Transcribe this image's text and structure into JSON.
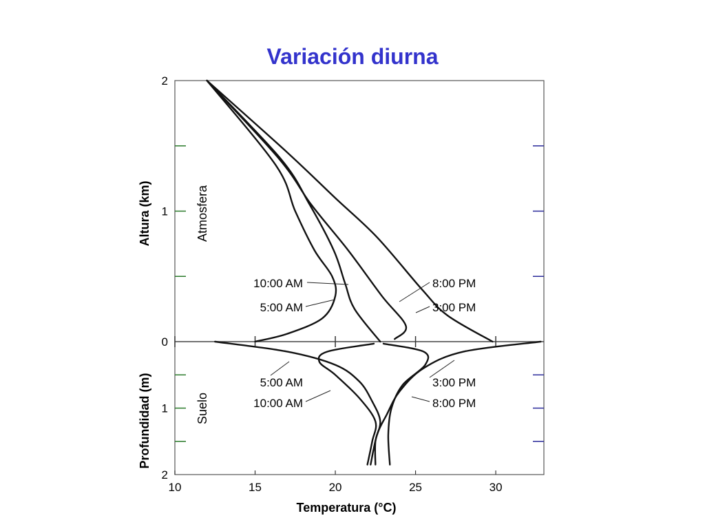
{
  "slide_title": "Variación diurna",
  "chart_data": {
    "type": "line",
    "title": "Variación diurna",
    "xlabel": "Temperatura (°C)",
    "xlim": [
      10,
      33
    ],
    "x_ticks": [
      "10",
      "15",
      "20",
      "25",
      "30"
    ],
    "panels": [
      {
        "name": "atmosphere",
        "region_label": "Atmosfera",
        "ylabel": "Altura (km)",
        "y_unit": "km",
        "ylim": [
          0,
          2
        ],
        "y_ticks": [
          "0",
          "1",
          "2"
        ],
        "series": [
          {
            "name": "5:00 AM",
            "points": [
              [
                15,
                0
              ],
              [
                17,
                0.06
              ],
              [
                19.2,
                0.18
              ],
              [
                20,
                0.35
              ],
              [
                19.8,
                0.5
              ],
              [
                18.7,
                0.7
              ],
              [
                17.5,
                1.0
              ],
              [
                16.3,
                1.35
              ],
              [
                12,
                2.0
              ]
            ]
          },
          {
            "name": "10:00 AM",
            "points": [
              [
                22.8,
                0
              ],
              [
                21.2,
                0.25
              ],
              [
                20.6,
                0.45
              ],
              [
                19.9,
                0.7
              ],
              [
                18.4,
                1.05
              ],
              [
                16.6,
                1.4
              ],
              [
                12,
                2.0
              ]
            ]
          },
          {
            "name": "3:00 PM",
            "points": [
              [
                29.8,
                0
              ],
              [
                27,
                0.2
              ],
              [
                25.4,
                0.4
              ],
              [
                22.6,
                0.8
              ],
              [
                20,
                1.1
              ],
              [
                17,
                1.45
              ],
              [
                12,
                2.0
              ]
            ]
          },
          {
            "name": "8:00 PM",
            "points": [
              [
                23.7,
                0.02
              ],
              [
                24.4,
                0.12
              ],
              [
                22.9,
                0.35
              ],
              [
                20.8,
                0.7
              ],
              [
                18.5,
                1.05
              ],
              [
                16.5,
                1.4
              ],
              [
                12,
                2.0
              ]
            ]
          }
        ]
      },
      {
        "name": "soil",
        "region_label": "Suelo",
        "ylabel": "Profundidad (m)",
        "y_unit": "m",
        "ylim": [
          0,
          2
        ],
        "y_ticks": [
          "0",
          "1",
          "2"
        ],
        "series": [
          {
            "name": "5:00 AM",
            "points": [
              [
                12.5,
                0
              ],
              [
                17,
                0.15
              ],
              [
                20,
                0.35
              ],
              [
                21.5,
                0.6
              ],
              [
                22.3,
                0.9
              ],
              [
                22.8,
                1.2
              ],
              [
                22.5,
                1.5
              ],
              [
                22.5,
                1.85
              ]
            ]
          },
          {
            "name": "10:00 AM",
            "points": [
              [
                22.4,
                0.03
              ],
              [
                19.5,
                0.15
              ],
              [
                19,
                0.3
              ],
              [
                20,
                0.5
              ],
              [
                21.5,
                0.85
              ],
              [
                22.5,
                1.2
              ],
              [
                22.3,
                1.5
              ],
              [
                22,
                1.85
              ]
            ]
          },
          {
            "name": "3:00 PM",
            "points": [
              [
                32.8,
                0
              ],
              [
                28,
                0.15
              ],
              [
                25.5,
                0.4
              ],
              [
                24,
                0.75
              ],
              [
                23.2,
                1.1
              ],
              [
                22.6,
                1.4
              ],
              [
                22.2,
                1.85
              ]
            ]
          },
          {
            "name": "8:00 PM",
            "points": [
              [
                23,
                0.03
              ],
              [
                25.5,
                0.15
              ],
              [
                25.6,
                0.35
              ],
              [
                24.2,
                0.65
              ],
              [
                23.5,
                1.0
              ],
              [
                23.3,
                1.4
              ],
              [
                23.4,
                1.85
              ]
            ]
          }
        ]
      }
    ],
    "annotations": {
      "atmosphere": [
        "10:00 AM",
        "5:00 AM",
        "8:00 PM",
        "3:00 PM"
      ],
      "soil": [
        "5:00 AM",
        "10:00 AM",
        "3:00 PM",
        "8:00 PM"
      ]
    },
    "grid": false,
    "legend": "none"
  }
}
